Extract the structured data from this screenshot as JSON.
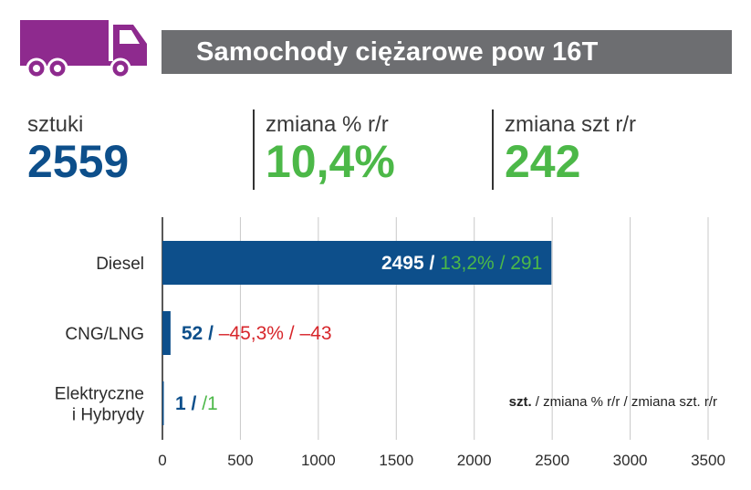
{
  "title": "Samochody ciężarowe pow 16T",
  "stats": [
    {
      "label": "sztuki",
      "value": "2559",
      "color": "#0d4f8b"
    },
    {
      "label": "zmiana % r/r",
      "value": "10,4%",
      "color": "#4cb848"
    },
    {
      "label": "zmiana szt r/r",
      "value": "242",
      "color": "#4cb848"
    }
  ],
  "colors": {
    "bar": "#0d4f8b",
    "positive": "#4cb848",
    "negative": "#d7262b",
    "icon": "#8e2a8e",
    "title_bg": "#6d6e71"
  },
  "icon": "truck-icon",
  "legend_note": {
    "bold": "szt.",
    "rest": " / zmiana % r/r / zmiana szt. r/r"
  },
  "chart_data": {
    "type": "bar",
    "orientation": "horizontal",
    "categories": [
      "Diesel",
      "CNG/LNG",
      "Elektryczne i Hybrydy"
    ],
    "category_lines": [
      [
        "Diesel"
      ],
      [
        "CNG/LNG"
      ],
      [
        "Elektryczne",
        "i Hybrydy"
      ]
    ],
    "values": [
      2495,
      52,
      1
    ],
    "change_pct": [
      "13,2%",
      "–45,3%",
      ""
    ],
    "change_units": [
      "291",
      "–43",
      "1"
    ],
    "change_sign": [
      "positive",
      "negative",
      "positive"
    ],
    "xlim": [
      0,
      3500
    ],
    "xticks": [
      0,
      500,
      1000,
      1500,
      2000,
      2500,
      3000,
      3500
    ],
    "grid": true,
    "xlabel": "",
    "ylabel": ""
  }
}
